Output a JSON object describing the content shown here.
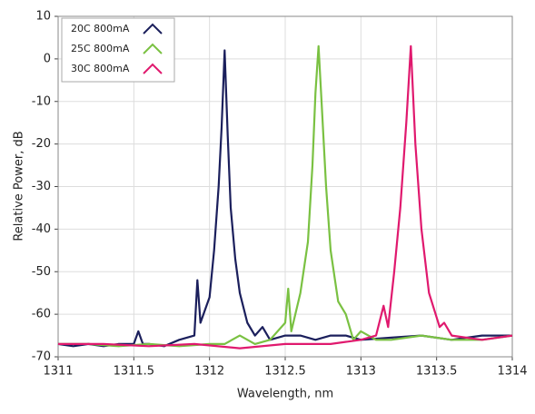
{
  "chart_data": {
    "type": "line",
    "x_label": "Wavelength, nm",
    "y_label": "Relative Power, dB",
    "xlim": [
      1311,
      1314
    ],
    "xticks": [
      1311,
      1311.5,
      1312,
      1312.5,
      1313,
      1313.5,
      1314
    ],
    "ylim": [
      -70,
      10
    ],
    "yticks": [
      10,
      0,
      -10,
      -20,
      -30,
      -40,
      -50,
      -60,
      -70
    ],
    "grid": true,
    "legend": "top-left",
    "series": [
      {
        "name": "20C 800mA",
        "color": "#1b1f5c",
        "x": [
          1311,
          1311.1,
          1311.2,
          1311.3,
          1311.4,
          1311.5,
          1311.53,
          1311.56,
          1311.6,
          1311.7,
          1311.8,
          1311.9,
          1311.92,
          1311.94,
          1311.97,
          1312.0,
          1312.03,
          1312.06,
          1312.08,
          1312.1,
          1312.12,
          1312.14,
          1312.17,
          1312.2,
          1312.25,
          1312.3,
          1312.35,
          1312.4,
          1312.5,
          1312.6,
          1312.7,
          1312.8,
          1312.9,
          1313.0,
          1313.2,
          1313.4,
          1313.6,
          1313.8,
          1314.0
        ],
        "values": [
          -67,
          -67.5,
          -67,
          -67.5,
          -67,
          -67,
          -64,
          -67,
          -67,
          -67.5,
          -66,
          -65,
          -52,
          -62,
          -59,
          -56,
          -45,
          -30,
          -16,
          2,
          -18,
          -35,
          -47,
          -55,
          -62,
          -65,
          -63,
          -66,
          -65,
          -65,
          -66,
          -65,
          -65,
          -66,
          -65.5,
          -65,
          -66,
          -65,
          -65
        ]
      },
      {
        "name": "25C 800mA",
        "color": "#7ac142",
        "x": [
          1311,
          1311.2,
          1311.4,
          1311.6,
          1311.8,
          1312.0,
          1312.1,
          1312.2,
          1312.3,
          1312.4,
          1312.5,
          1312.52,
          1312.54,
          1312.6,
          1312.65,
          1312.68,
          1312.7,
          1312.72,
          1312.74,
          1312.77,
          1312.8,
          1312.85,
          1312.9,
          1312.95,
          1313.0,
          1313.1,
          1313.2,
          1313.4,
          1313.6,
          1313.8,
          1314
        ],
        "values": [
          -67,
          -67,
          -67.5,
          -67,
          -67.5,
          -67,
          -67,
          -65,
          -67,
          -66,
          -62,
          -54,
          -64,
          -55,
          -43,
          -25,
          -8,
          3,
          -10,
          -30,
          -45,
          -57,
          -60,
          -66,
          -64,
          -66,
          -66,
          -65,
          -66,
          -66,
          -65
        ]
      },
      {
        "name": "30C 800mA",
        "color": "#e0196e",
        "x": [
          1311,
          1311.3,
          1311.6,
          1311.9,
          1312.2,
          1312.5,
          1312.8,
          1313.0,
          1313.1,
          1313.15,
          1313.18,
          1313.22,
          1313.26,
          1313.3,
          1313.33,
          1313.36,
          1313.4,
          1313.45,
          1313.52,
          1313.55,
          1313.6,
          1313.8,
          1314
        ],
        "values": [
          -67,
          -67,
          -67.5,
          -67,
          -68,
          -67,
          -67,
          -66,
          -65,
          -58,
          -63,
          -50,
          -35,
          -15,
          3,
          -20,
          -40,
          -55,
          -63,
          -62,
          -65,
          -66,
          -65
        ]
      }
    ]
  }
}
